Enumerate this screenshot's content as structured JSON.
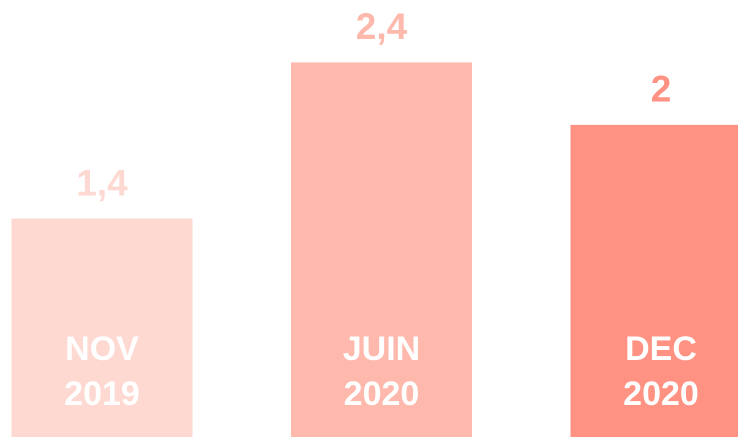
{
  "chart_data": {
    "type": "bar",
    "categories": [
      [
        "NOV",
        "2019"
      ],
      [
        "JUIN",
        "2020"
      ],
      [
        "DEC",
        "2020"
      ]
    ],
    "values": [
      1.4,
      2.4,
      2
    ],
    "value_labels": [
      "1,4",
      "2,4",
      "2"
    ],
    "colors": [
      "#fdd9d2",
      "#ffb8ac",
      "#ff9283"
    ],
    "ylim": [
      0,
      2.8
    ]
  }
}
